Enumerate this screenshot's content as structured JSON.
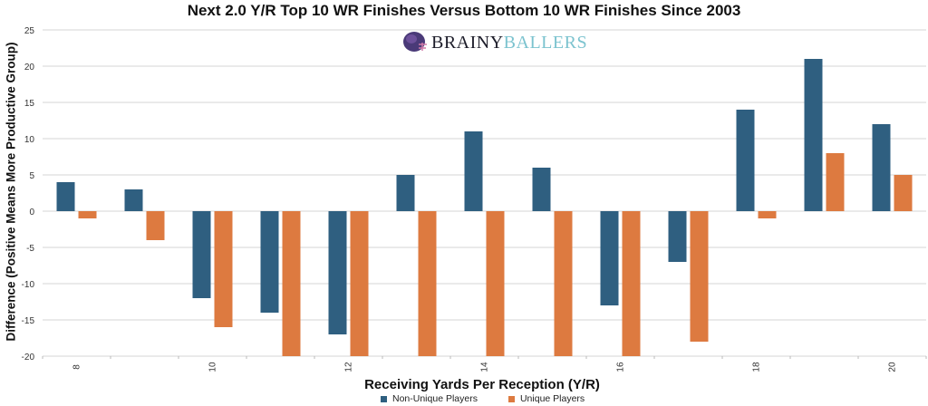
{
  "chart_data": {
    "type": "bar",
    "title": "Next 2.0 Y/R Top 10 WR Finishes Versus Bottom 10 WR Finishes Since 2003",
    "xlabel": "Receiving Yards Per Reception (Y/R)",
    "ylabel": "Difference (Positive Means More Productive Group)",
    "categories": [
      8,
      9,
      10,
      11,
      12,
      13,
      14,
      15,
      16,
      17,
      18,
      19,
      20
    ],
    "x_tick_labels": [
      "8",
      "10",
      "12",
      "14",
      "16",
      "18",
      "20"
    ],
    "y_tick_labels": [
      "25",
      "20",
      "15",
      "10",
      "5",
      "0",
      "-5",
      "-10",
      "-15",
      "-20"
    ],
    "ylim": [
      -20,
      25
    ],
    "grid": true,
    "legend_position": "bottom",
    "series": [
      {
        "name": "Non-Unique Players",
        "color": "#2f5f80",
        "values": [
          4,
          3,
          -12,
          -14,
          -17,
          5,
          11,
          6,
          -13,
          -7,
          14,
          21,
          12
        ]
      },
      {
        "name": "Unique Players",
        "color": "#dd7a40",
        "values": [
          -1,
          -4,
          -16,
          -20,
          -20,
          -20,
          -20,
          -20,
          -20,
          -18,
          -1,
          8,
          5
        ]
      }
    ]
  },
  "logo": {
    "text_dark": "BRAINY",
    "text_light": "BALLERS"
  }
}
